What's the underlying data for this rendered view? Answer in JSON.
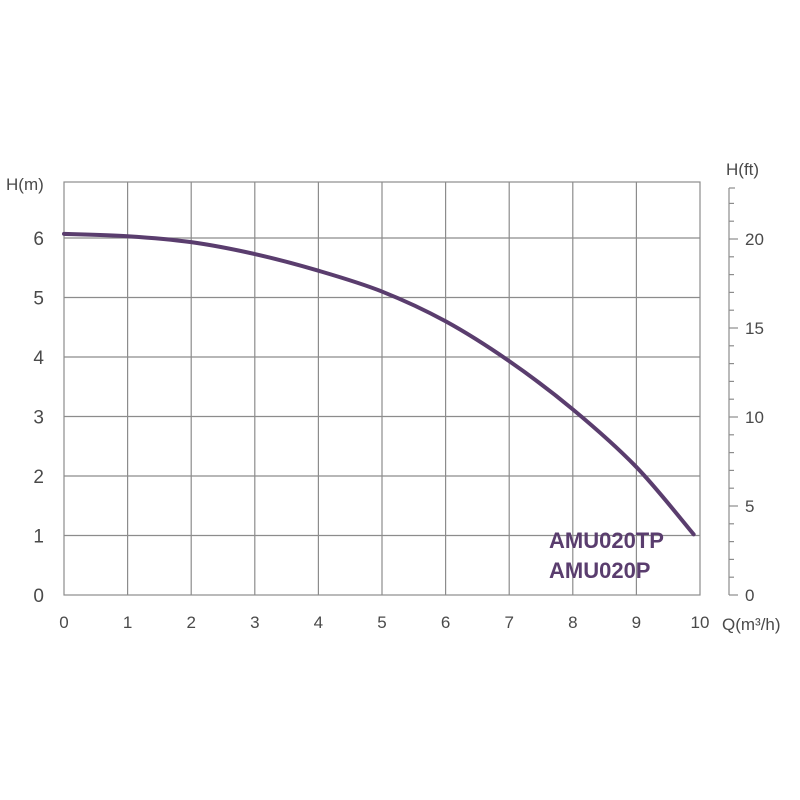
{
  "chart_data": {
    "type": "line",
    "title": "",
    "xlabel": "Q(m³/h)",
    "ylabel": "H(m)",
    "y2label": "H(ft)",
    "xlim": [
      0,
      10
    ],
    "ylim": [
      0,
      6.5
    ],
    "y2lim": [
      0,
      23
    ],
    "x_ticks": [
      0,
      1,
      2,
      3,
      4,
      5,
      6,
      7,
      8,
      9,
      10
    ],
    "y_ticks": [
      0,
      1,
      2,
      3,
      4,
      5,
      6
    ],
    "y2_ticks": [
      0,
      5,
      10,
      15,
      20
    ],
    "grid": true,
    "series_labels": [
      "AMU020TP",
      "AMU020P"
    ],
    "series": [
      {
        "color": "#5a3d6e",
        "x": [
          0,
          1,
          2,
          3,
          4,
          5,
          6,
          7,
          8,
          9,
          9.9
        ],
        "y": [
          6.07,
          6.03,
          5.93,
          5.73,
          5.45,
          5.1,
          4.6,
          3.93,
          3.12,
          2.15,
          1.02
        ]
      }
    ]
  }
}
